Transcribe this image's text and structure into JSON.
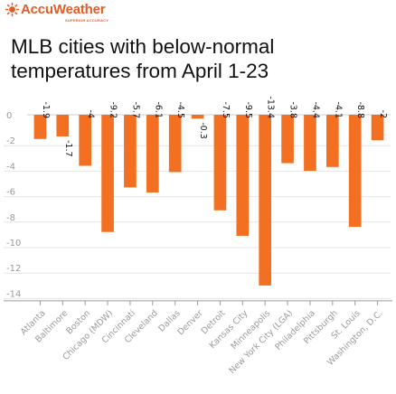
{
  "brand": {
    "name": "AccuWeather",
    "tagline": "SUPERIOR ACCURACY",
    "accent_color": "#e25b26",
    "icon": "sun-logo-icon"
  },
  "title": "MLB cities with below-normal temperatures from April 1-23",
  "chart_data": {
    "type": "bar",
    "title": "MLB cities with below-normal temperatures from April 1-23",
    "xlabel": "",
    "ylabel": "",
    "categories": [
      "Atlanta",
      "Baltimore",
      "Boston",
      "Chicago (MDW)",
      "Cincinnati",
      "Cleveland",
      "Dallas",
      "Denver",
      "Detroit",
      "Kansas City",
      "Minneapolis",
      "New York City (LGA)",
      "Philadelphia",
      "Pittsburgh",
      "St. Louis",
      "Washington, D.C."
    ],
    "values": [
      -1.9,
      -1.7,
      -4,
      -9.2,
      -5.7,
      -6.1,
      -4.5,
      -0.3,
      -7.5,
      -9.5,
      -13.4,
      -3.8,
      -4.4,
      -4.1,
      -8.8,
      -2
    ],
    "value_labels": [
      "-1.9",
      "-1.7",
      "-4",
      "-9.2",
      "-5.7",
      "-6.1",
      "-4.5",
      "-0.3",
      "-7.5",
      "-9.5",
      "-13.4",
      "-3.8",
      "-4.4",
      "-4.1",
      "-8.8",
      "-2"
    ],
    "yticks": [
      0,
      -2,
      -4,
      -6,
      -8,
      -10,
      -12,
      -14
    ],
    "ytick_labels": [
      "0",
      "-2",
      "-4",
      "-6",
      "-8",
      "-10",
      "-12",
      "-14"
    ],
    "ylim": [
      -14.6,
      0
    ],
    "bar_color": "#f36f21",
    "grid": true,
    "legend": "none"
  }
}
